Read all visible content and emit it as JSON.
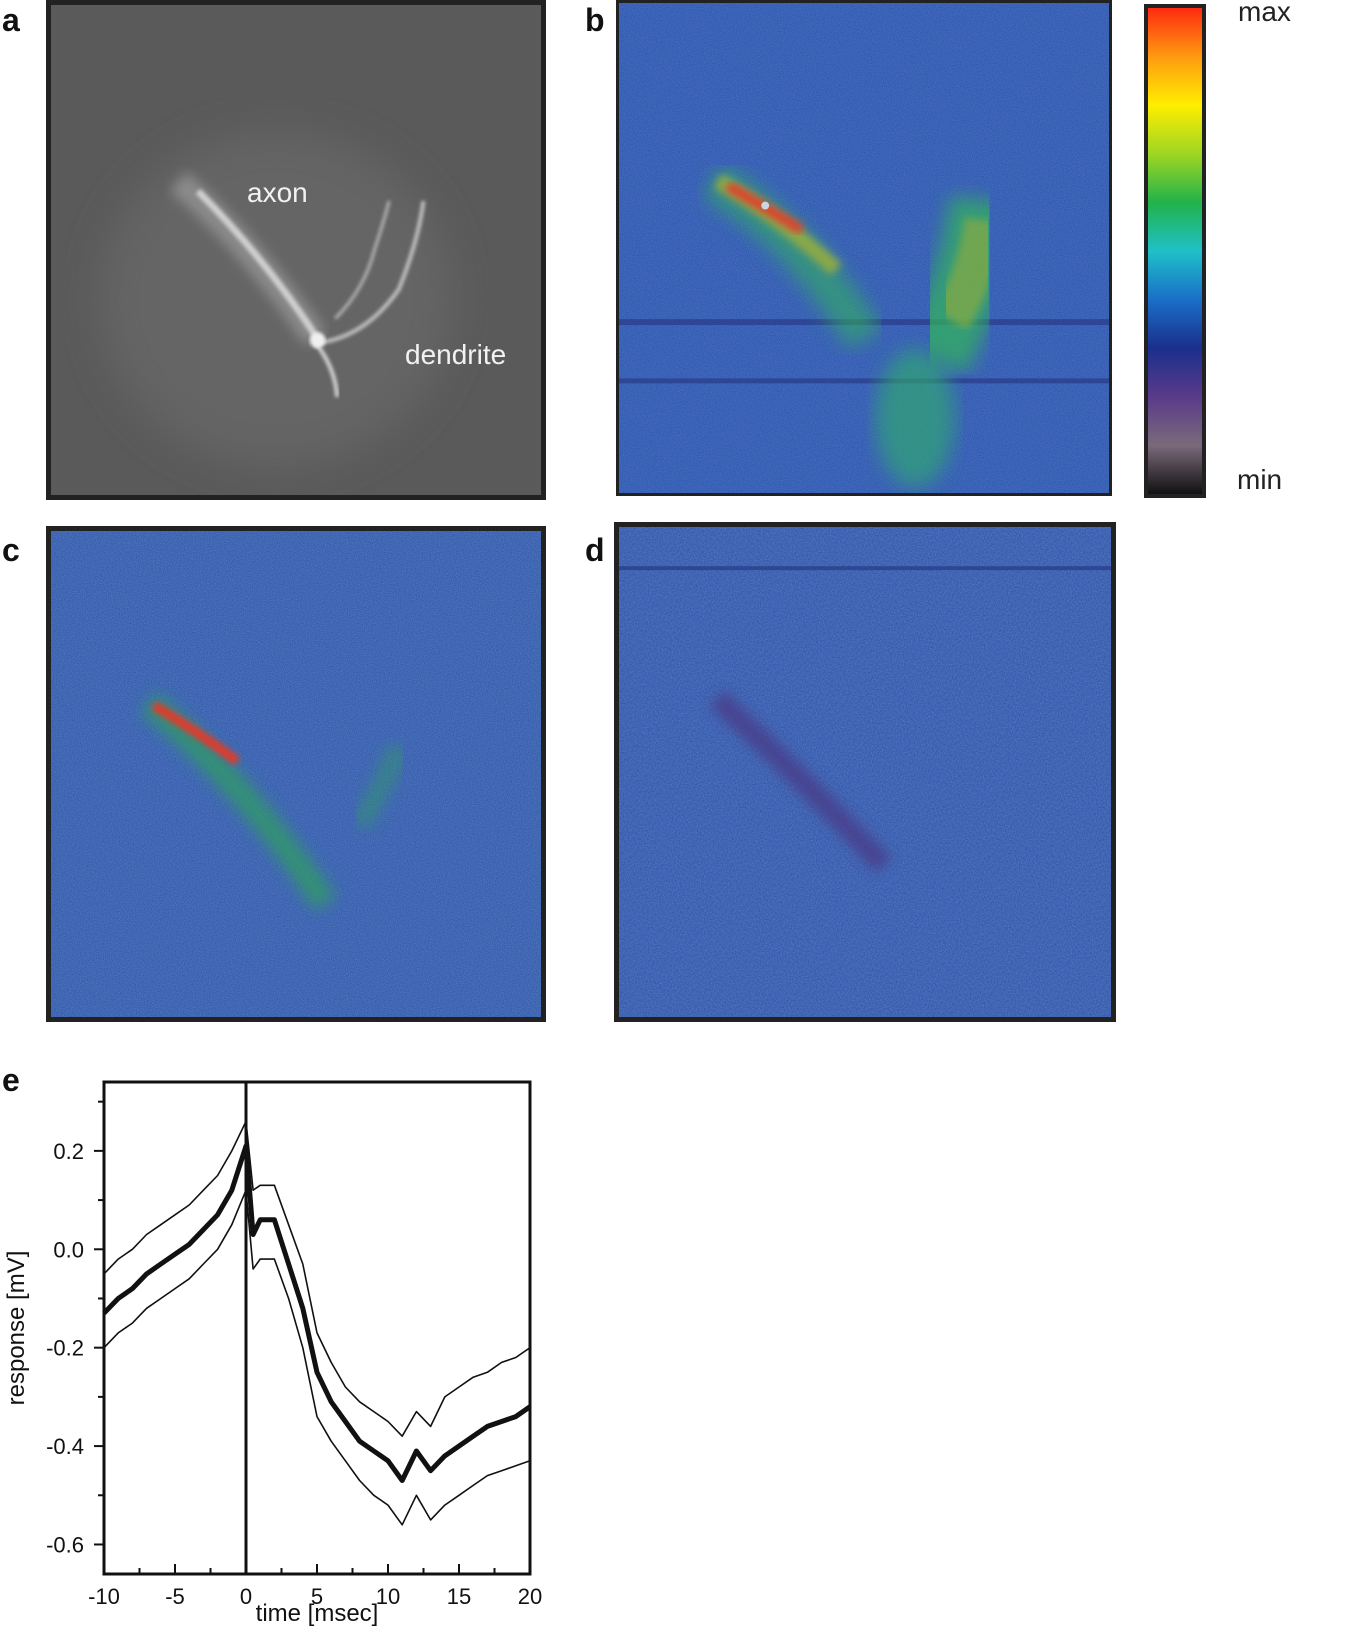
{
  "panels": {
    "a": {
      "label": "a",
      "annotations": {
        "axon": "axon",
        "dendrite": "dendrite"
      }
    },
    "b": {
      "label": "b"
    },
    "c": {
      "label": "c"
    },
    "d": {
      "label": "d"
    },
    "e": {
      "label": "e"
    }
  },
  "colorbar": {
    "max_label": "max",
    "min_label": "min",
    "stops": [
      "#ff2a10",
      "#ff9a10",
      "#ffee00",
      "#9ed622",
      "#22b24a",
      "#1fc0c8",
      "#1a6fc8",
      "#1a2f8c",
      "#5a3a8a",
      "#7a6a7a",
      "#111111"
    ]
  },
  "chart_data": {
    "type": "line",
    "title": "",
    "xlabel": "time [msec]",
    "ylabel": "response [mV]",
    "xlim": [
      -10,
      20
    ],
    "ylim": [
      -0.66,
      0.34
    ],
    "xticks": [
      -10,
      -5,
      0,
      5,
      10,
      15,
      20
    ],
    "xtick_labels": [
      "-10",
      "-5",
      "0",
      "5",
      "10",
      "15",
      "20"
    ],
    "yticks": [
      0.2,
      0.0,
      -0.2,
      -0.4,
      -0.6
    ],
    "ytick_labels": [
      "0.2",
      "0.0",
      "-0.2",
      "-0.4",
      "-0.6"
    ],
    "vline_x": 0,
    "grid": false,
    "x": [
      -10,
      -9,
      -8,
      -7,
      -6,
      -5,
      -4,
      -3,
      -2,
      -1,
      0,
      0.5,
      1,
      2,
      3,
      4,
      5,
      6,
      7,
      8,
      9,
      10,
      11,
      12,
      13,
      14,
      15,
      16,
      17,
      18,
      19,
      20
    ],
    "series": [
      {
        "style": "thick",
        "values": [
          -0.13,
          -0.1,
          -0.08,
          -0.05,
          -0.03,
          -0.01,
          0.01,
          0.04,
          0.07,
          0.12,
          0.21,
          0.03,
          0.06,
          0.06,
          -0.03,
          -0.12,
          -0.25,
          -0.31,
          -0.35,
          -0.39,
          -0.41,
          -0.43,
          -0.47,
          -0.41,
          -0.45,
          -0.42,
          -0.4,
          -0.38,
          -0.36,
          -0.35,
          -0.34,
          -0.32
        ]
      },
      {
        "style": "upper",
        "values": [
          -0.05,
          -0.02,
          0.0,
          0.03,
          0.05,
          0.07,
          0.09,
          0.12,
          0.15,
          0.2,
          0.26,
          0.12,
          0.13,
          0.13,
          0.05,
          -0.03,
          -0.17,
          -0.23,
          -0.28,
          -0.31,
          -0.33,
          -0.35,
          -0.38,
          -0.33,
          -0.36,
          -0.3,
          -0.28,
          -0.26,
          -0.25,
          -0.23,
          -0.22,
          -0.2
        ]
      },
      {
        "style": "lower",
        "values": [
          -0.2,
          -0.17,
          -0.15,
          -0.12,
          -0.1,
          -0.08,
          -0.06,
          -0.03,
          0.0,
          0.05,
          0.12,
          -0.04,
          -0.02,
          -0.02,
          -0.1,
          -0.2,
          -0.34,
          -0.39,
          -0.43,
          -0.47,
          -0.5,
          -0.52,
          -0.56,
          -0.5,
          -0.55,
          -0.52,
          -0.5,
          -0.48,
          -0.46,
          -0.45,
          -0.44,
          -0.43
        ]
      }
    ]
  }
}
